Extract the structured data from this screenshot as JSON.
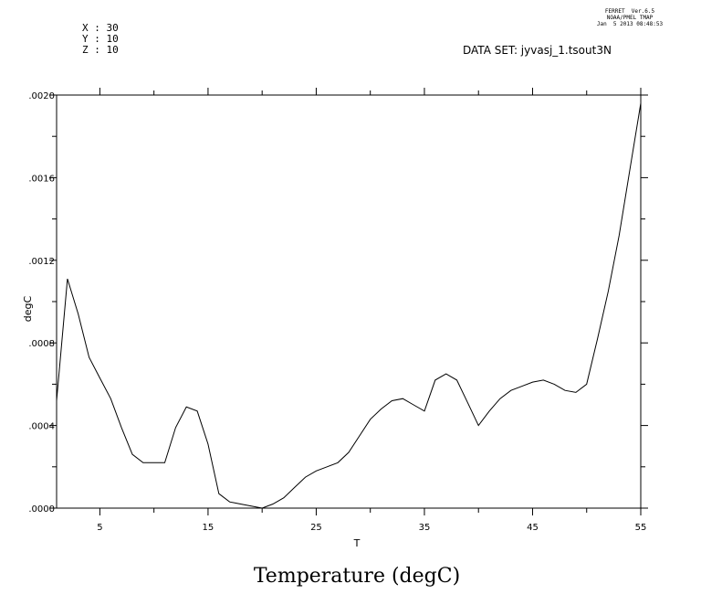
{
  "header": {
    "program": "FERRET  Ver.6.5",
    "org": "NOAA/PMEL TMAP",
    "date": "Jan  5 2013 08:48:53",
    "dataset_label": "DATA SET: jyvasj_1.tsout3N",
    "coords": [
      {
        "label": "X : 30"
      },
      {
        "label": "Y : 10"
      },
      {
        "label": "Z : 10"
      }
    ]
  },
  "chart_data": {
    "type": "line",
    "title": "Temperature (degC)",
    "xlabel": "T",
    "ylabel": "degC",
    "xlim": [
      1,
      55
    ],
    "ylim": [
      0,
      0.002
    ],
    "x_ticks": [
      5,
      15,
      25,
      35,
      45,
      55
    ],
    "y_ticks": [
      ".0000",
      ".0004",
      ".0008",
      ".0012",
      ".0016",
      ".0020"
    ],
    "y_tick_values": [
      0,
      0.0004,
      0.0008,
      0.0012,
      0.0016,
      0.002
    ],
    "grid": false,
    "series": [
      {
        "color": "#000000",
        "x": [
          1,
          2,
          3,
          4,
          5,
          6,
          7,
          8,
          9,
          10,
          11,
          12,
          13,
          14,
          15,
          16,
          17,
          18,
          19,
          20,
          21,
          22,
          23,
          24,
          25,
          26,
          27,
          28,
          29,
          30,
          31,
          32,
          33,
          34,
          35,
          36,
          37,
          38,
          39,
          40,
          41,
          42,
          43,
          44,
          45,
          46,
          47,
          48,
          49,
          50,
          51,
          52,
          53,
          54,
          55
        ],
        "values": [
          0.00052,
          0.00111,
          0.00094,
          0.00073,
          0.00063,
          0.00053,
          0.00039,
          0.00026,
          0.00022,
          0.00022,
          0.00022,
          0.00039,
          0.00049,
          0.00047,
          0.00031,
          7e-05,
          3e-05,
          2e-05,
          1e-05,
          0.0,
          2e-05,
          5e-05,
          0.0001,
          0.00015,
          0.00018,
          0.0002,
          0.00022,
          0.00027,
          0.00035,
          0.00043,
          0.00048,
          0.00052,
          0.00053,
          0.0005,
          0.00047,
          0.00062,
          0.00065,
          0.00062,
          0.00051,
          0.0004,
          0.00047,
          0.00053,
          0.00057,
          0.00059,
          0.00061,
          0.00062,
          0.0006,
          0.00057,
          0.00056,
          0.0006,
          0.00082,
          0.00105,
          0.00132,
          0.00164,
          0.00196
        ]
      }
    ]
  }
}
